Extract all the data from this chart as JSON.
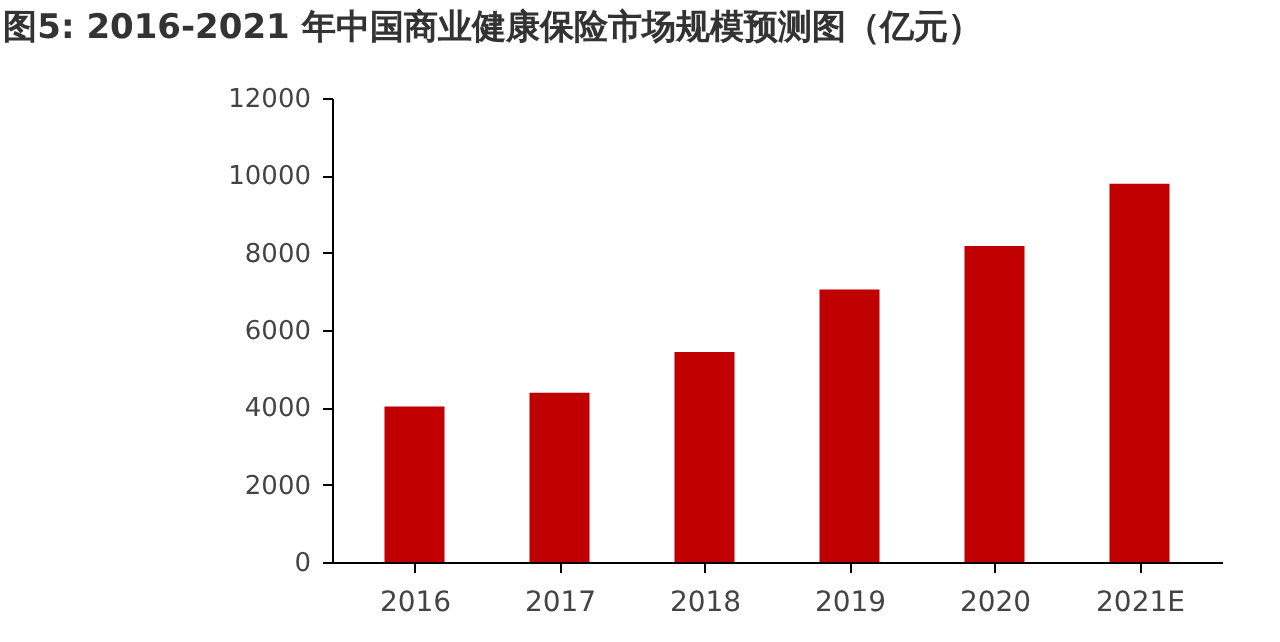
{
  "chart_data": {
    "type": "bar",
    "title": "图5: 2016-2021 年中国商业健康保险市场规模预测图（亿元）",
    "categories": [
      "2016",
      "2017",
      "2018",
      "2019",
      "2020",
      "2021E"
    ],
    "values": [
      4020,
      4380,
      5430,
      7050,
      8170,
      9780
    ],
    "color": "#c00000",
    "ylim": [
      0,
      12000
    ],
    "yticks": [
      0,
      2000,
      4000,
      6000,
      8000,
      10000,
      12000
    ],
    "grid": false
  }
}
